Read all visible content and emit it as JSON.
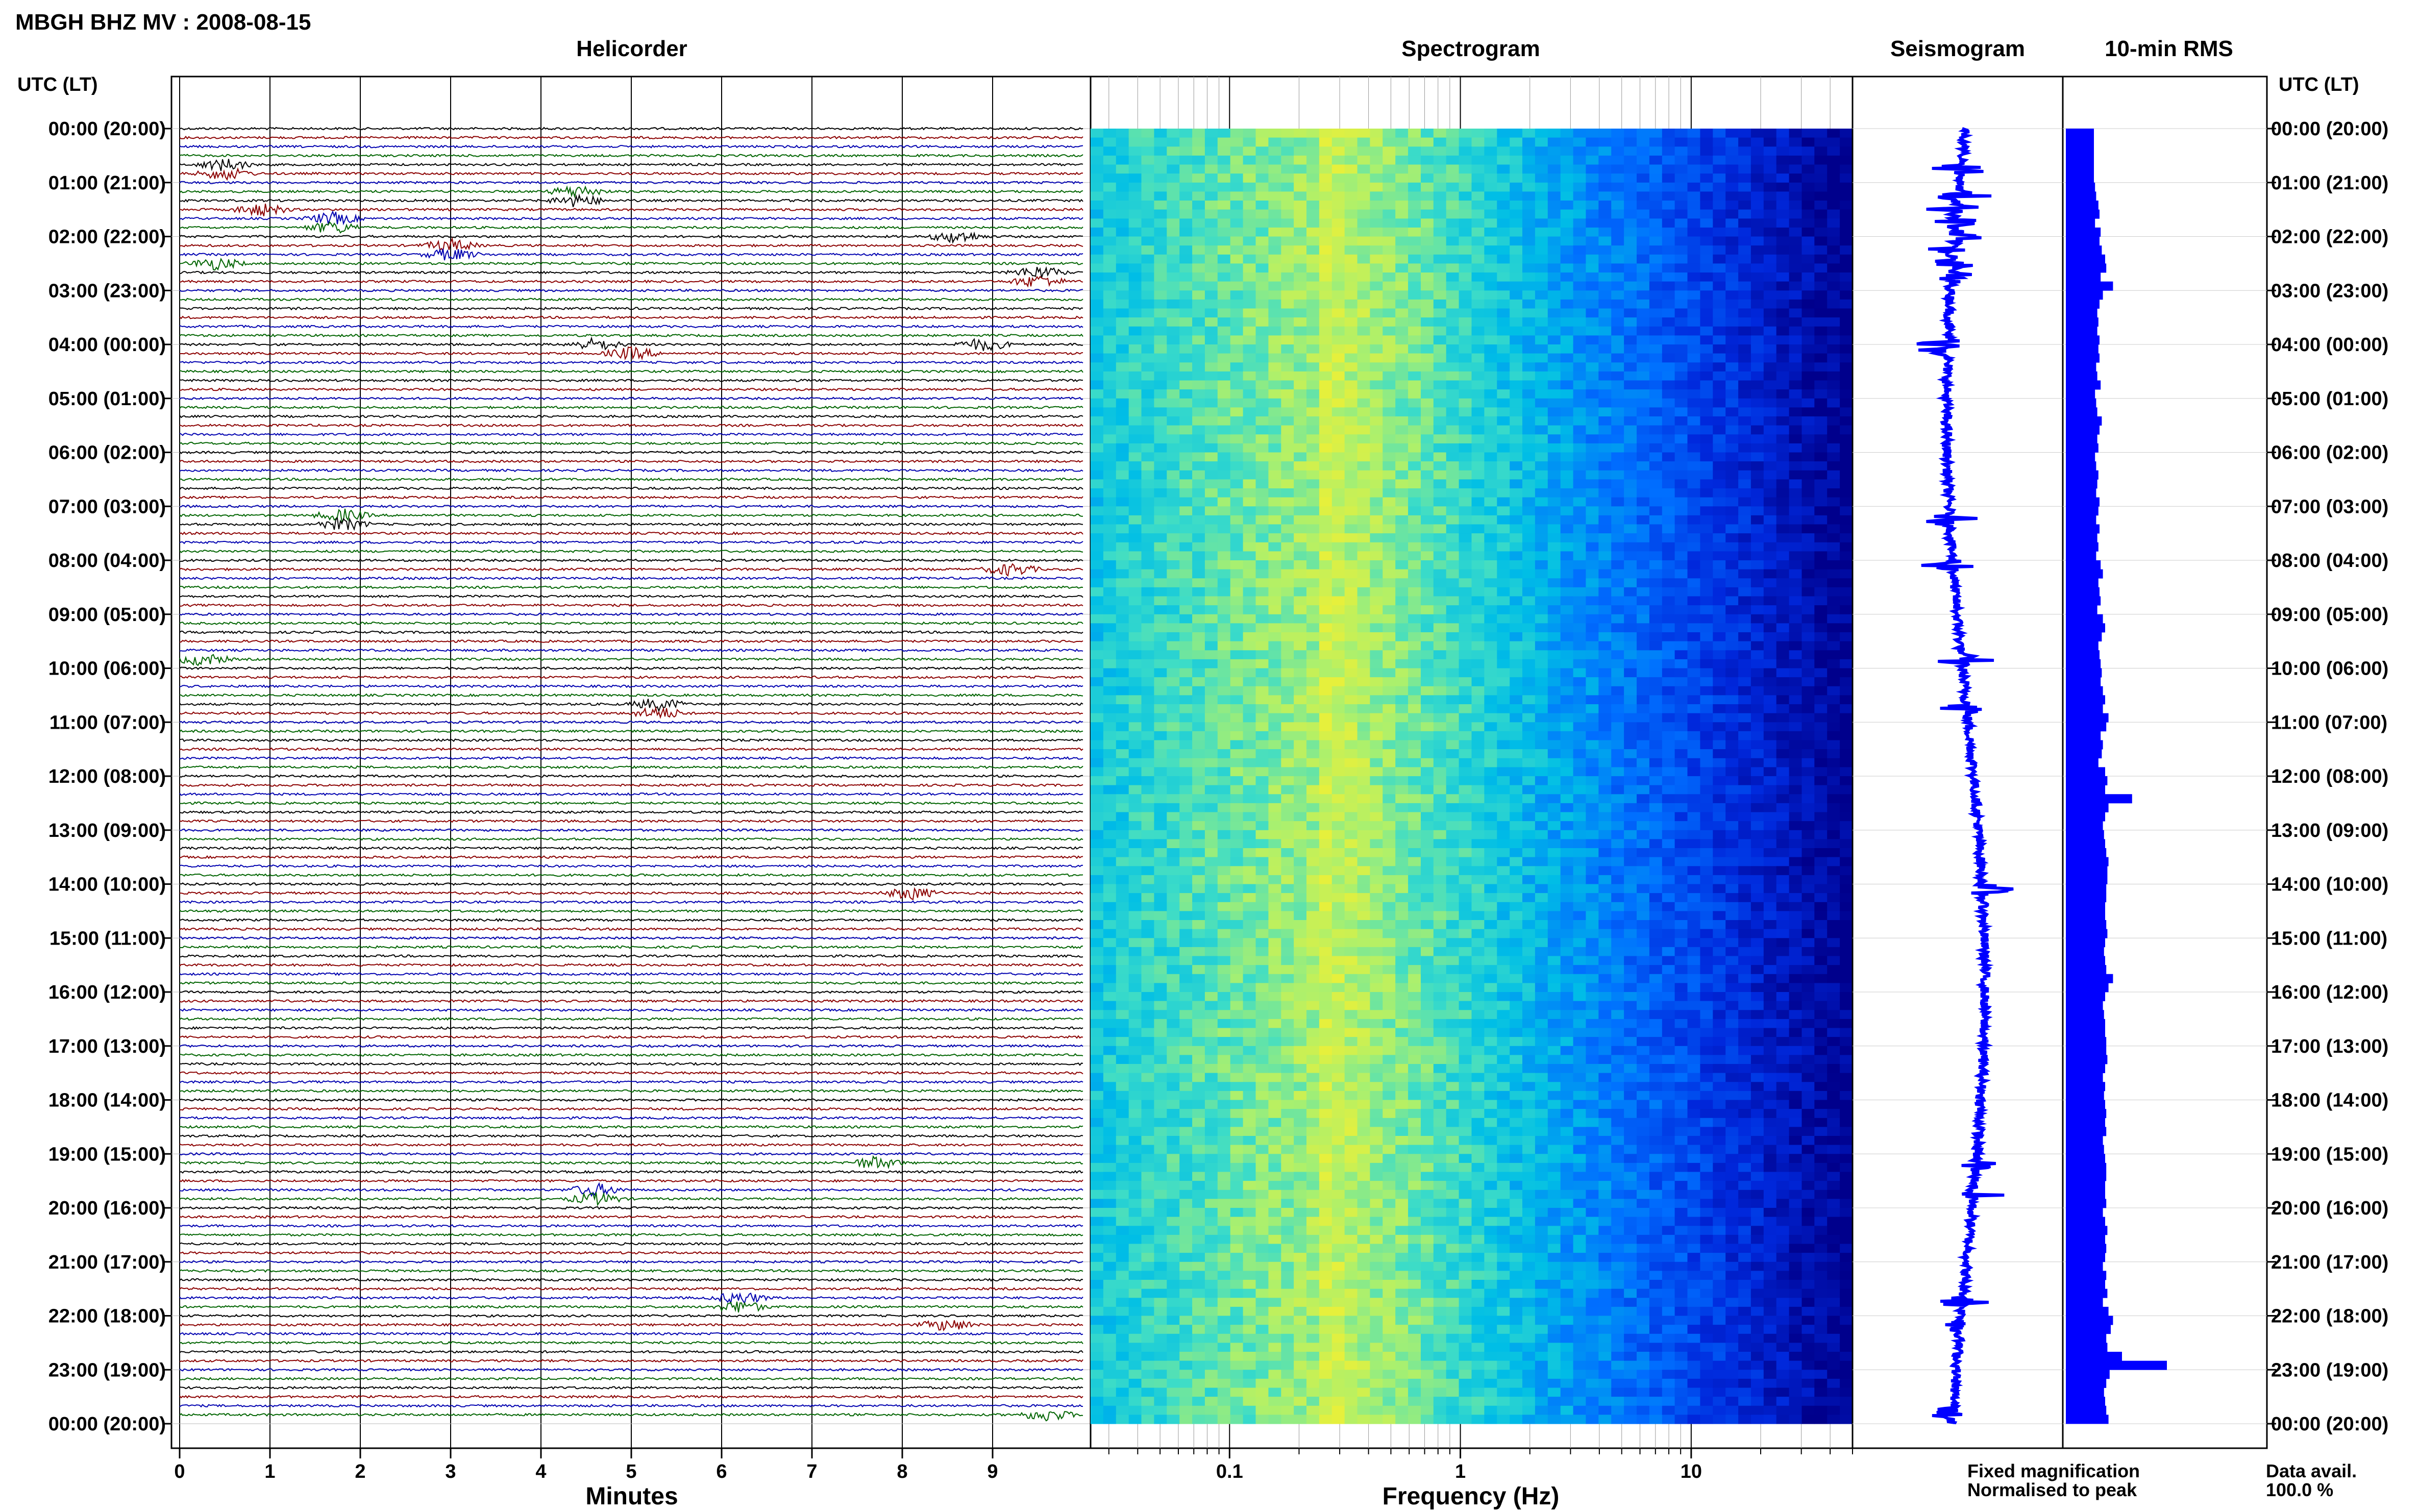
{
  "title": "MBGH BHZ MV : 2008-08-15",
  "panels": {
    "helicorder": "Helicorder",
    "spectrogram": "Spectrogram",
    "seismogram": "Seismogram",
    "rms": "10-min RMS"
  },
  "time_axis_label": "UTC (LT)",
  "time_labels": [
    "00:00 (20:00)",
    "01:00 (21:00)",
    "02:00 (22:00)",
    "03:00 (23:00)",
    "04:00 (00:00)",
    "05:00 (01:00)",
    "06:00 (02:00)",
    "07:00 (03:00)",
    "08:00 (04:00)",
    "09:00 (05:00)",
    "10:00 (06:00)",
    "11:00 (07:00)",
    "12:00 (08:00)",
    "13:00 (09:00)",
    "14:00 (10:00)",
    "15:00 (11:00)",
    "16:00 (12:00)",
    "17:00 (13:00)",
    "18:00 (14:00)",
    "19:00 (15:00)",
    "20:00 (16:00)",
    "21:00 (17:00)",
    "22:00 (18:00)",
    "23:00 (19:00)",
    "00:00 (20:00)"
  ],
  "helicorder_xlabel": "Minutes",
  "helicorder_ticks": [
    "0",
    "1",
    "2",
    "3",
    "4",
    "5",
    "6",
    "7",
    "8",
    "9"
  ],
  "spectrogram_xlabel": "Frequency (Hz)",
  "spectrogram_ticks": [
    "0.1",
    "1",
    "10"
  ],
  "legend": {
    "fixed": "Fixed magnification",
    "normalised": "Normalised to peak",
    "fixed_color": "#0000ff",
    "normalised_color": "#ff0000"
  },
  "data_avail": {
    "label": "Data avail.",
    "value": "100.0 %"
  },
  "colors": {
    "trace_cycle": [
      "#000000",
      "#8b0000",
      "#0000b0",
      "#006400"
    ],
    "seismogram": "#0000ff",
    "rms_bar": "#0000ff"
  },
  "chart_data": [
    {
      "type": "line",
      "name": "helicorder",
      "title": "Helicorder",
      "xlabel": "Minutes",
      "xlim": [
        0,
        10
      ],
      "ylabel": "UTC (LT)",
      "rows": 144,
      "events": [
        {
          "hour": 0.75,
          "minute": 0.5
        },
        {
          "hour": 1.25,
          "minute": 4.4
        },
        {
          "hour": 1.5,
          "minute": 0.9
        },
        {
          "hour": 1.75,
          "minute": 1.7
        },
        {
          "hour": 2.0,
          "minute": 8.6
        },
        {
          "hour": 2.25,
          "minute": 3.0
        },
        {
          "hour": 2.5,
          "minute": 0.4
        },
        {
          "hour": 2.75,
          "minute": 9.5
        },
        {
          "hour": 4.0,
          "minute": 4.6
        },
        {
          "hour": 4.0,
          "minute": 8.9
        },
        {
          "hour": 4.1,
          "minute": 5.0
        },
        {
          "hour": 7.25,
          "minute": 1.8
        },
        {
          "hour": 8.1,
          "minute": 9.2
        },
        {
          "hour": 9.85,
          "minute": 0.25
        },
        {
          "hour": 10.75,
          "minute": 5.3
        },
        {
          "hour": 14.1,
          "minute": 8.1
        },
        {
          "hour": 19.2,
          "minute": 7.7
        },
        {
          "hour": 19.75,
          "minute": 4.6
        },
        {
          "hour": 21.75,
          "minute": 6.2
        },
        {
          "hour": 22.2,
          "minute": 8.5
        },
        {
          "hour": 23.8,
          "minute": 9.6
        }
      ]
    },
    {
      "type": "heatmap",
      "name": "spectrogram",
      "title": "Spectrogram",
      "xlabel": "Frequency (Hz)",
      "xscale": "log",
      "xlim": [
        0.025,
        50
      ],
      "peak_frequency_hz": 0.25
    },
    {
      "type": "line",
      "name": "seismogram",
      "title": "Seismogram",
      "ylim": [
        0,
        24
      ]
    },
    {
      "type": "bar",
      "name": "rms",
      "title": "10-min RMS",
      "categories_unit": "10-minute interval (0-143)",
      "values": [
        50,
        50,
        50,
        50,
        50,
        50,
        52,
        54,
        58,
        60,
        52,
        62,
        60,
        64,
        70,
        72,
        62,
        84,
        66,
        60,
        56,
        58,
        56,
        60,
        58,
        60,
        54,
        56,
        62,
        52,
        54,
        56,
        64,
        60,
        56,
        58,
        52,
        54,
        58,
        56,
        54,
        60,
        58,
        54,
        60,
        56,
        58,
        54,
        62,
        66,
        58,
        60,
        62,
        56,
        66,
        70,
        64,
        58,
        60,
        62,
        64,
        62,
        66,
        70,
        66,
        76,
        72,
        62,
        66,
        64,
        58,
        70,
        74,
        70,
        118,
        76,
        70,
        66,
        68,
        70,
        72,
        76,
        74,
        74,
        72,
        72,
        70,
        70,
        72,
        74,
        70,
        68,
        70,
        72,
        84,
        76,
        70,
        66,
        68,
        70,
        70,
        72,
        72,
        74,
        70,
        66,
        70,
        68,
        70,
        72,
        70,
        72,
        66,
        68,
        70,
        72,
        72,
        70,
        70,
        72,
        66,
        70,
        74,
        70,
        72,
        70,
        66,
        72,
        70,
        74,
        66,
        76,
        84,
        80,
        72,
        74,
        100,
        180,
        78,
        72,
        68,
        70,
        72,
        76
      ]
    }
  ]
}
